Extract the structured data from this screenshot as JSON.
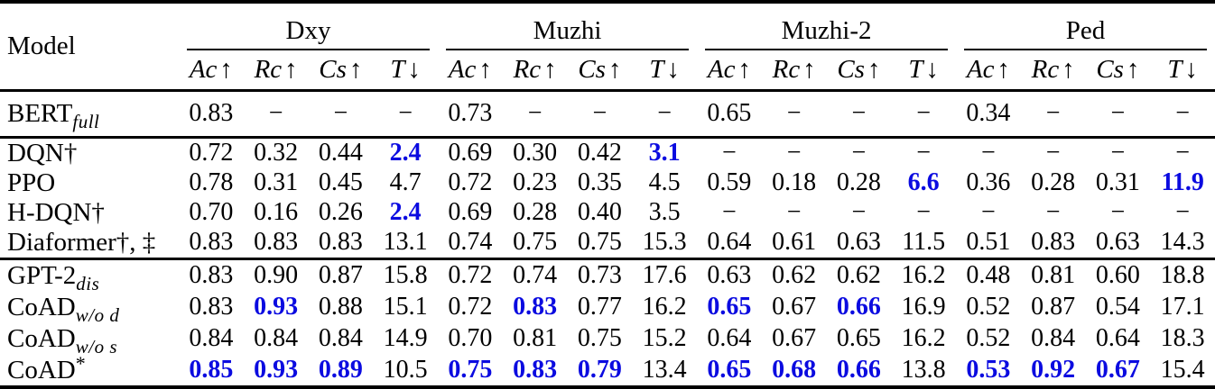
{
  "colors": {
    "highlight_blue": "#0B0BE0",
    "text": "#000000",
    "background": "#FFFFFF",
    "rule": "#000000"
  },
  "table": {
    "model_column_header": "Model",
    "groups": [
      {
        "label": "Dxy"
      },
      {
        "label": "Muzhi"
      },
      {
        "label": "Muzhi-2"
      },
      {
        "label": "Ped"
      }
    ],
    "metrics": [
      {
        "label": "Ac",
        "arrow": "↑"
      },
      {
        "label": "Rc",
        "arrow": "↑"
      },
      {
        "label": "Cs",
        "arrow": "↑"
      },
      {
        "label": "T",
        "arrow": "↓"
      }
    ],
    "sections": [
      {
        "rows": [
          {
            "model": {
              "base": "BERT",
              "sub": "full"
            },
            "values": [
              "0.83",
              "−",
              "−",
              "−",
              "0.73",
              "−",
              "−",
              "−",
              "0.65",
              "−",
              "−",
              "−",
              "0.34",
              "−",
              "−",
              "−"
            ],
            "highlight": []
          }
        ]
      },
      {
        "rows": [
          {
            "model": {
              "base": "DQN†"
            },
            "values": [
              "0.72",
              "0.32",
              "0.44",
              "2.4",
              "0.69",
              "0.30",
              "0.42",
              "3.1",
              "−",
              "−",
              "−",
              "−",
              "−",
              "−",
              "−",
              "−"
            ],
            "highlight": [
              3,
              7
            ]
          },
          {
            "model": {
              "base": "PPO"
            },
            "values": [
              "0.78",
              "0.31",
              "0.45",
              "4.7",
              "0.72",
              "0.23",
              "0.35",
              "4.5",
              "0.59",
              "0.18",
              "0.28",
              "6.6",
              "0.36",
              "0.28",
              "0.31",
              "11.9"
            ],
            "highlight": [
              11,
              15
            ]
          },
          {
            "model": {
              "base": "H-DQN†"
            },
            "values": [
              "0.70",
              "0.16",
              "0.26",
              "2.4",
              "0.69",
              "0.28",
              "0.40",
              "3.5",
              "−",
              "−",
              "−",
              "−",
              "−",
              "−",
              "−",
              "−"
            ],
            "highlight": [
              3
            ]
          },
          {
            "model": {
              "base": "Diaformer†, ‡"
            },
            "values": [
              "0.83",
              "0.83",
              "0.83",
              "13.1",
              "0.74",
              "0.75",
              "0.75",
              "15.3",
              "0.64",
              "0.61",
              "0.63",
              "11.5",
              "0.51",
              "0.83",
              "0.63",
              "14.3"
            ],
            "highlight": []
          }
        ]
      },
      {
        "rows": [
          {
            "model": {
              "base": "GPT-2",
              "sub": "dis"
            },
            "values": [
              "0.83",
              "0.90",
              "0.87",
              "15.8",
              "0.72",
              "0.74",
              "0.73",
              "17.6",
              "0.63",
              "0.62",
              "0.62",
              "16.2",
              "0.48",
              "0.81",
              "0.60",
              "18.8"
            ],
            "highlight": []
          },
          {
            "model": {
              "base": "CoAD",
              "sub": "w/o d"
            },
            "values": [
              "0.83",
              "0.93",
              "0.88",
              "15.1",
              "0.72",
              "0.83",
              "0.77",
              "16.2",
              "0.65",
              "0.67",
              "0.66",
              "16.9",
              "0.52",
              "0.87",
              "0.54",
              "17.1"
            ],
            "highlight": [
              1,
              5,
              8,
              10
            ]
          },
          {
            "model": {
              "base": "CoAD",
              "sub": "w/o s"
            },
            "values": [
              "0.84",
              "0.84",
              "0.84",
              "14.9",
              "0.70",
              "0.81",
              "0.75",
              "15.2",
              "0.64",
              "0.67",
              "0.65",
              "16.2",
              "0.52",
              "0.84",
              "0.64",
              "18.3"
            ],
            "highlight": []
          },
          {
            "model": {
              "base": "CoAD",
              "sup": "*"
            },
            "values": [
              "0.85",
              "0.93",
              "0.89",
              "10.5",
              "0.75",
              "0.83",
              "0.79",
              "13.4",
              "0.65",
              "0.68",
              "0.66",
              "13.8",
              "0.53",
              "0.92",
              "0.67",
              "15.4"
            ],
            "highlight": [
              0,
              1,
              2,
              4,
              5,
              6,
              8,
              9,
              10,
              12,
              13,
              14
            ]
          }
        ]
      }
    ]
  }
}
